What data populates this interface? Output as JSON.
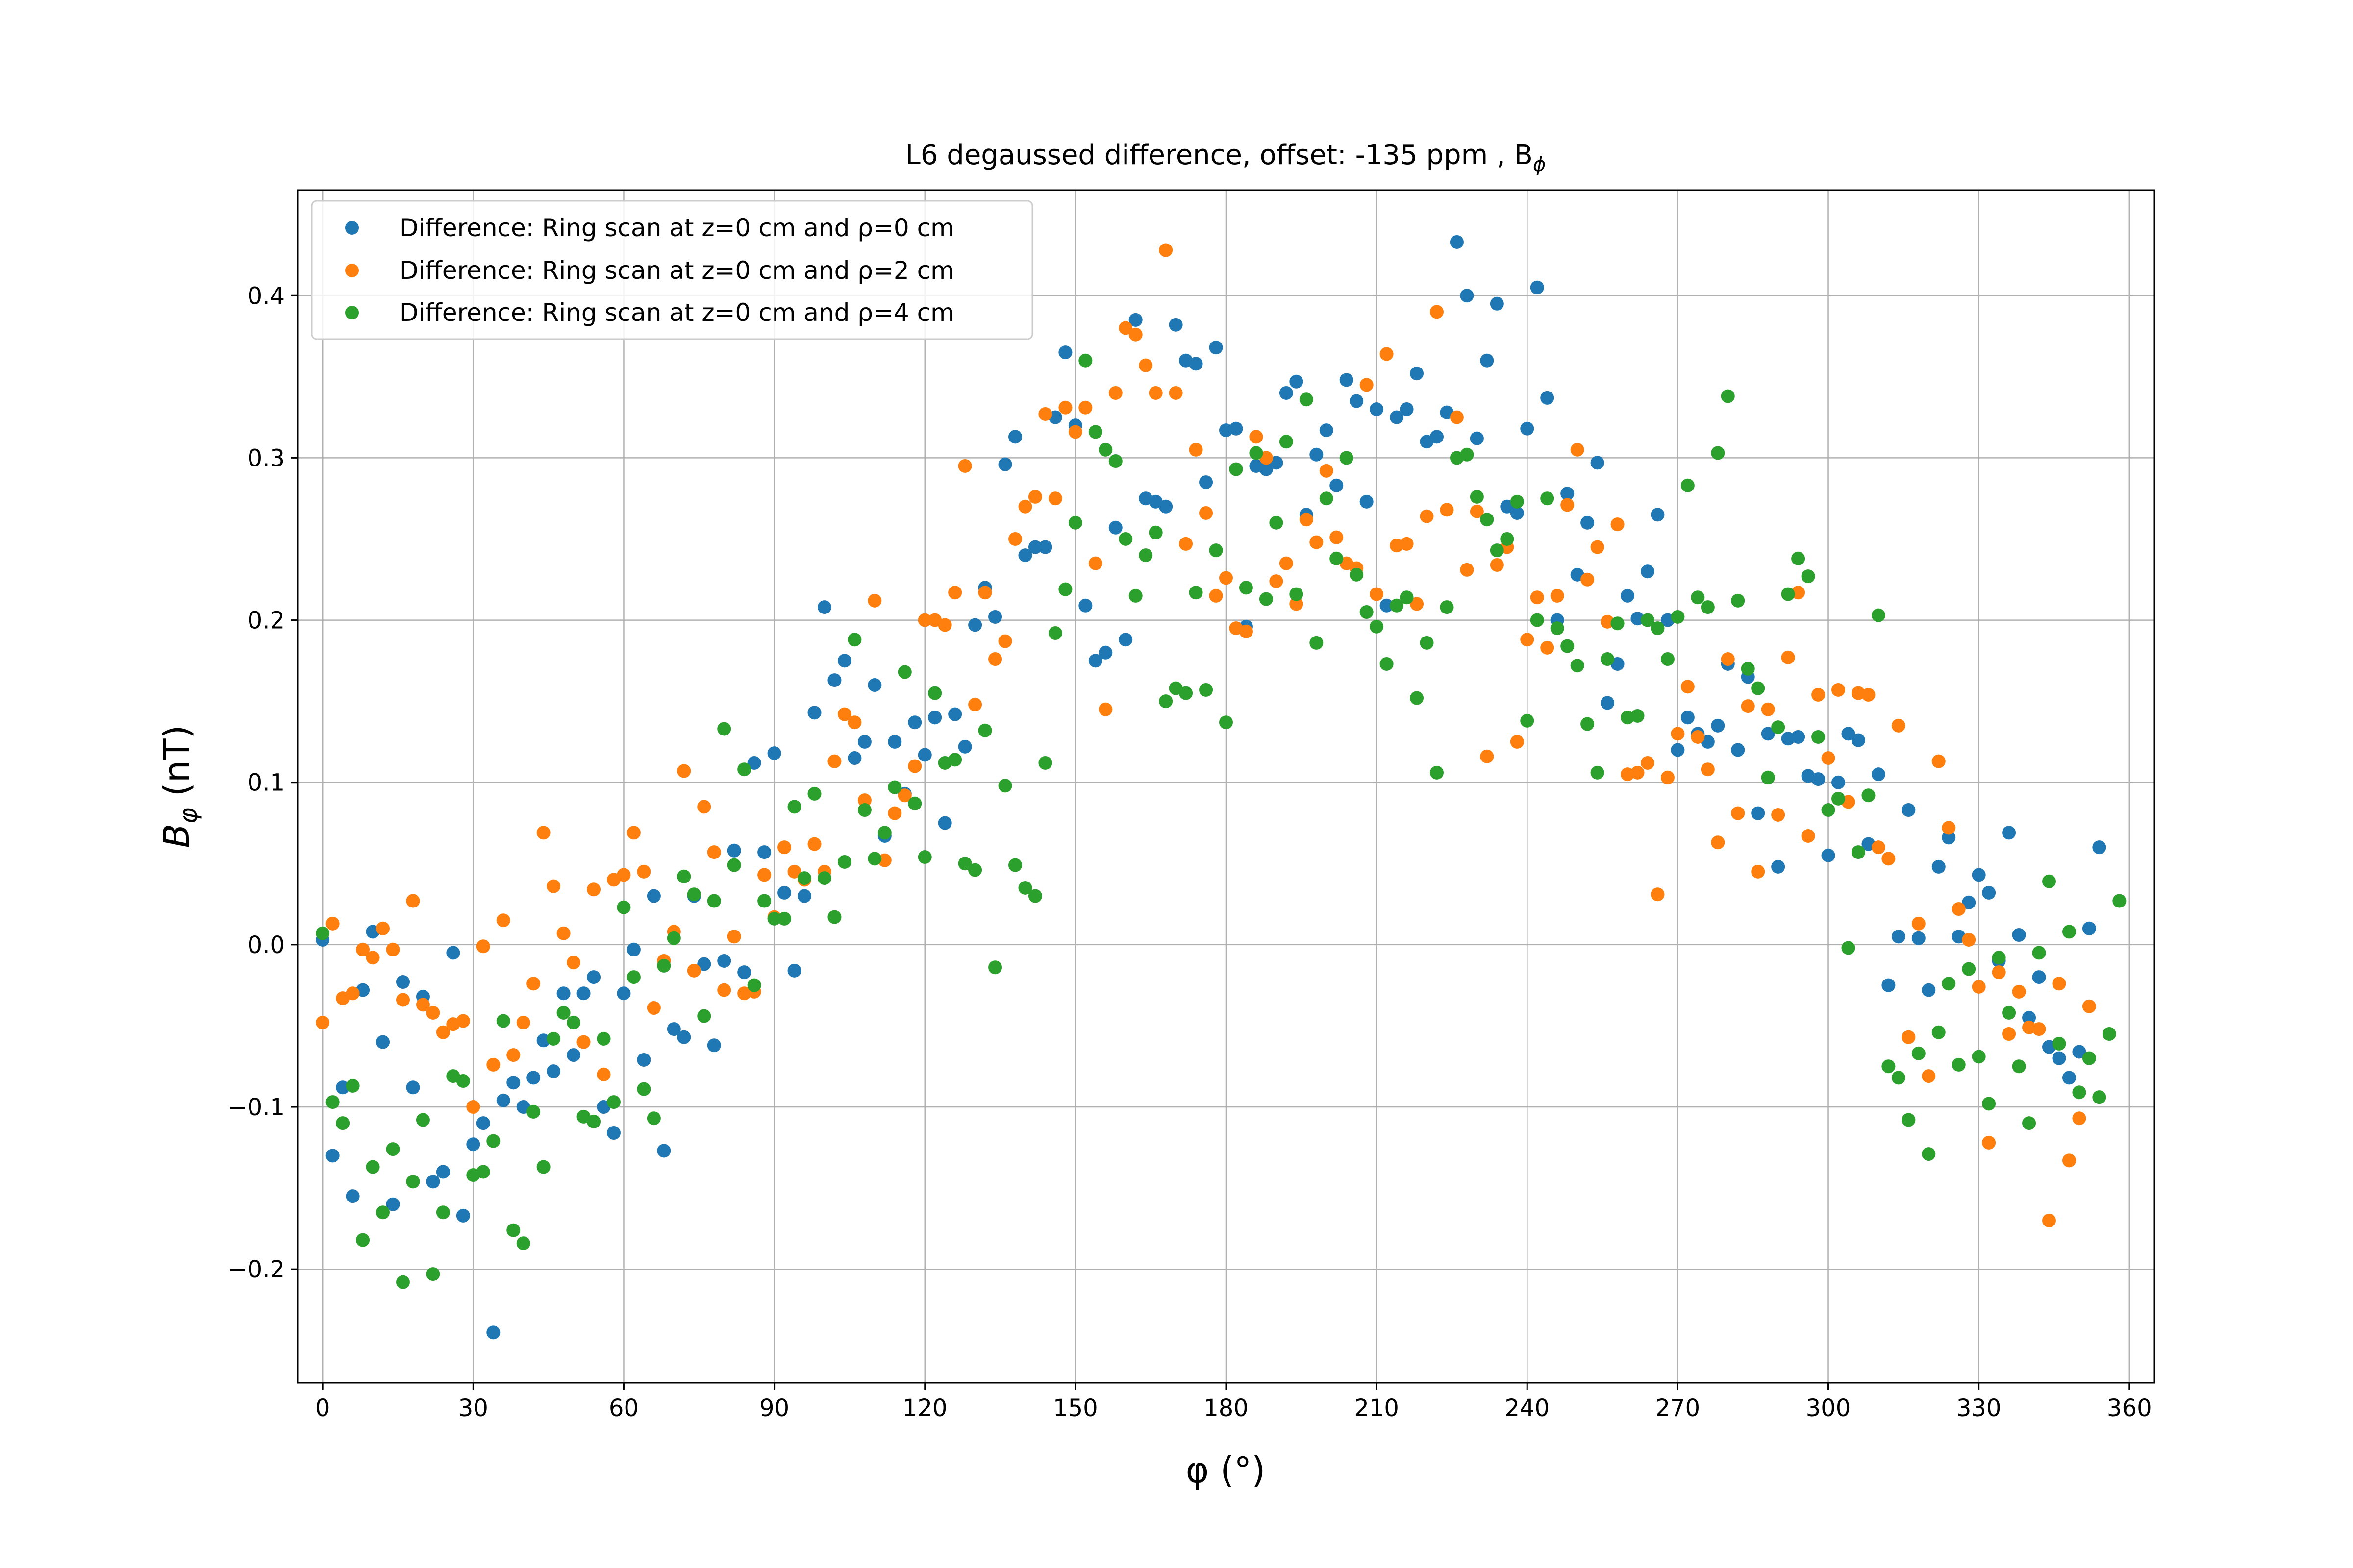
{
  "chart_data": {
    "type": "scatter",
    "title": "L6 degaussed difference, offset: -135 ppm , B",
    "title_subscript": "ϕ",
    "xlabel": "φ (°)",
    "ylabel_main": "B",
    "ylabel_subscript": "φ",
    "ylabel_unit": " (nT)",
    "xlim": [
      -5,
      365
    ],
    "ylim": [
      -0.27,
      0.465
    ],
    "x_ticks": [
      0,
      30,
      60,
      90,
      120,
      150,
      180,
      210,
      240,
      270,
      300,
      330,
      360
    ],
    "x_tick_labels": [
      "0",
      "30",
      "60",
      "90",
      "120",
      "150",
      "180",
      "210",
      "240",
      "270",
      "300",
      "330",
      "360"
    ],
    "y_ticks": [
      -0.2,
      -0.1,
      0.0,
      0.1,
      0.2,
      0.3,
      0.4
    ],
    "y_tick_labels": [
      "−0.2",
      "−0.1",
      "0.0",
      "0.1",
      "0.2",
      "0.3",
      "0.4"
    ],
    "grid": true,
    "legend_position": "upper-left",
    "x_step": 2,
    "series": [
      {
        "name": "Difference: Ring scan at z=0 cm and ρ=0 cm",
        "color": "#1f77b4",
        "values": [
          0.003,
          -0.13,
          -0.088,
          -0.155,
          -0.028,
          0.008,
          -0.06,
          -0.16,
          -0.023,
          -0.088,
          -0.032,
          -0.146,
          -0.14,
          -0.005,
          -0.167,
          -0.123,
          -0.11,
          -0.239,
          -0.096,
          -0.085,
          -0.1,
          -0.082,
          -0.059,
          -0.078,
          -0.03,
          -0.068,
          -0.03,
          -0.02,
          -0.1,
          -0.116,
          -0.03,
          -0.003,
          -0.071,
          0.03,
          -0.127,
          -0.052,
          -0.057,
          0.03,
          -0.012,
          -0.062,
          -0.01,
          0.058,
          -0.017,
          0.112,
          0.057,
          0.118,
          0.032,
          -0.016,
          0.03,
          0.143,
          0.208,
          0.163,
          0.175,
          0.115,
          0.125,
          0.16,
          0.067,
          0.125,
          0.093,
          0.137,
          0.117,
          0.14,
          0.075,
          0.142,
          0.122,
          0.197,
          0.22,
          0.202,
          0.296,
          0.313,
          0.24,
          0.245,
          0.245,
          0.325,
          0.365,
          0.32,
          0.209,
          0.175,
          0.18,
          0.257,
          0.188,
          0.385,
          0.275,
          0.273,
          0.27,
          0.382,
          0.36,
          0.358,
          0.285,
          0.368,
          0.317,
          0.318,
          0.196,
          0.295,
          0.293,
          0.297,
          0.34,
          0.347,
          0.265,
          0.302,
          0.317,
          0.283,
          0.348,
          0.335,
          0.273,
          0.33,
          0.209,
          0.325,
          0.33,
          0.352,
          0.31,
          0.313,
          0.328,
          0.433,
          0.4,
          0.312,
          0.36,
          0.395,
          0.27,
          0.266,
          0.318,
          0.405,
          0.337,
          0.2,
          0.278,
          0.228,
          0.26,
          0.297,
          0.149,
          0.173,
          0.215,
          0.201,
          0.23,
          0.265,
          0.2,
          0.12,
          0.14,
          0.13,
          0.125,
          0.135,
          0.173,
          0.12,
          0.165,
          0.081,
          0.13,
          0.048,
          0.127,
          0.128,
          0.104,
          0.102,
          0.055,
          0.1,
          0.13,
          0.126,
          0.062,
          0.105,
          -0.025,
          0.005,
          0.083,
          0.004,
          -0.028,
          0.048,
          0.066,
          0.005,
          0.026,
          0.043,
          0.032,
          -0.01,
          0.069,
          0.006,
          -0.045,
          -0.02,
          -0.063,
          -0.07,
          -0.082,
          -0.066,
          0.01,
          0.06
        ]
      },
      {
        "name": "Difference: Ring scan at z=0 cm and ρ=2 cm",
        "color": "#ff7f0e",
        "values": [
          -0.048,
          0.013,
          -0.033,
          -0.03,
          -0.003,
          -0.008,
          0.01,
          -0.003,
          -0.034,
          0.027,
          -0.037,
          -0.042,
          -0.054,
          -0.049,
          -0.047,
          -0.1,
          -0.001,
          -0.074,
          0.015,
          -0.068,
          -0.048,
          -0.024,
          0.069,
          0.036,
          0.007,
          -0.011,
          -0.06,
          0.034,
          -0.08,
          0.04,
          0.043,
          0.069,
          0.045,
          -0.039,
          -0.01,
          0.008,
          0.107,
          -0.016,
          0.085,
          0.057,
          -0.028,
          0.005,
          -0.03,
          -0.029,
          0.043,
          0.017,
          0.06,
          0.045,
          0.04,
          0.062,
          0.045,
          0.113,
          0.142,
          0.137,
          0.089,
          0.212,
          0.052,
          0.081,
          0.092,
          0.11,
          0.2,
          0.2,
          0.197,
          0.217,
          0.295,
          0.148,
          0.217,
          0.176,
          0.187,
          0.25,
          0.27,
          0.276,
          0.327,
          0.275,
          0.331,
          0.316,
          0.331,
          0.235,
          0.145,
          0.34,
          0.38,
          0.376,
          0.357,
          0.34,
          0.428,
          0.34,
          0.247,
          0.305,
          0.266,
          0.215,
          0.226,
          0.195,
          0.193,
          0.313,
          0.3,
          0.224,
          0.235,
          0.21,
          0.262,
          0.248,
          0.292,
          0.251,
          0.235,
          0.232,
          0.345,
          0.216,
          0.364,
          0.246,
          0.247,
          0.21,
          0.264,
          0.39,
          0.268,
          0.325,
          0.231,
          0.267,
          0.116,
          0.234,
          0.245,
          0.125,
          0.188,
          0.214,
          0.183,
          0.215,
          0.271,
          0.305,
          0.225,
          0.245,
          0.199,
          0.259,
          0.105,
          0.106,
          0.112,
          0.031,
          0.103,
          0.13,
          0.159,
          0.128,
          0.108,
          0.063,
          0.176,
          0.081,
          0.147,
          0.045,
          0.145,
          0.08,
          0.177,
          0.217,
          0.067,
          0.154,
          0.115,
          0.157,
          0.088,
          0.155,
          0.154,
          0.06,
          0.053,
          0.135,
          -0.057,
          0.013,
          -0.081,
          0.113,
          0.072,
          0.022,
          0.003,
          -0.026,
          -0.122,
          -0.017,
          -0.055,
          -0.029,
          -0.051,
          -0.052,
          -0.17,
          -0.024,
          -0.133,
          -0.107,
          -0.038
        ]
      },
      {
        "name": "Difference: Ring scan at z=0 cm and ρ=4 cm",
        "color": "#2ca02c",
        "values": [
          0.007,
          -0.097,
          -0.11,
          -0.087,
          -0.182,
          -0.137,
          -0.165,
          -0.126,
          -0.208,
          -0.146,
          -0.108,
          -0.203,
          -0.165,
          -0.081,
          -0.084,
          -0.142,
          -0.14,
          -0.121,
          -0.047,
          -0.176,
          -0.184,
          -0.103,
          -0.137,
          -0.058,
          -0.042,
          -0.048,
          -0.106,
          -0.109,
          -0.058,
          -0.097,
          0.023,
          -0.02,
          -0.089,
          -0.107,
          -0.013,
          0.004,
          0.042,
          0.031,
          -0.044,
          0.027,
          0.133,
          0.049,
          0.108,
          -0.025,
          0.027,
          0.016,
          0.016,
          0.085,
          0.041,
          0.093,
          0.041,
          0.017,
          0.051,
          0.188,
          0.083,
          0.053,
          0.069,
          0.097,
          0.168,
          0.087,
          0.054,
          0.155,
          0.112,
          0.114,
          0.05,
          0.046,
          0.132,
          -0.014,
          0.098,
          0.049,
          0.035,
          0.03,
          0.112,
          0.192,
          0.219,
          0.26,
          0.36,
          0.316,
          0.305,
          0.298,
          0.25,
          0.215,
          0.24,
          0.254,
          0.15,
          0.158,
          0.155,
          0.217,
          0.157,
          0.243,
          0.137,
          0.293,
          0.22,
          0.303,
          0.213,
          0.26,
          0.31,
          0.216,
          0.336,
          0.186,
          0.275,
          0.238,
          0.3,
          0.228,
          0.205,
          0.196,
          0.173,
          0.209,
          0.214,
          0.152,
          0.186,
          0.106,
          0.208,
          0.3,
          0.302,
          0.276,
          0.262,
          0.243,
          0.25,
          0.273,
          0.138,
          0.2,
          0.275,
          0.195,
          0.184,
          0.172,
          0.136,
          0.106,
          0.176,
          0.198,
          0.14,
          0.141,
          0.2,
          0.195,
          0.176,
          0.202,
          0.283,
          0.214,
          0.208,
          0.303,
          0.338,
          0.212,
          0.17,
          0.158,
          0.103,
          0.134,
          0.216,
          0.238,
          0.227,
          0.128,
          0.083,
          0.09,
          -0.002,
          0.057,
          0.092,
          0.203,
          -0.075,
          -0.082,
          -0.108,
          -0.067,
          -0.129,
          -0.054,
          -0.024,
          -0.074,
          -0.015,
          -0.069,
          -0.098,
          -0.008,
          -0.042,
          -0.075,
          -0.11,
          -0.005,
          0.039,
          -0.061,
          0.008,
          -0.091,
          -0.07,
          -0.094,
          -0.055,
          0.027
        ]
      }
    ]
  }
}
